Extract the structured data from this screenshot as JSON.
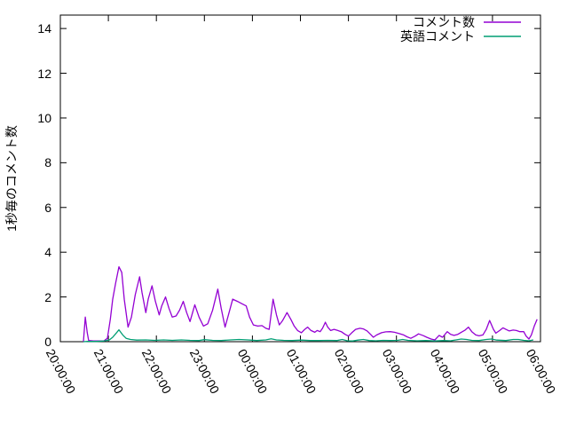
{
  "background_color": "#ffffff",
  "axis_color": "#000000",
  "chart_data": {
    "type": "line",
    "title": "",
    "xlabel": "",
    "ylabel": "1秒毎のコメント数",
    "grid": false,
    "legend_position": "top-right-inside",
    "y_ticks": [
      0,
      2,
      4,
      6,
      8,
      10,
      12,
      14
    ],
    "ylim": [
      0,
      14.6
    ],
    "x_tick_hours": [
      0,
      1,
      2,
      3,
      4,
      5,
      6,
      7,
      8,
      9,
      10
    ],
    "x_tick_labels": [
      "20:00:00",
      "21:00:00",
      "22:00:00",
      "23:00:00",
      "00:00:00",
      "01:00:00",
      "02:00:00",
      "03:00:00",
      "04:00:00",
      "05:00:00",
      "06:00:00"
    ],
    "x_axis_note": "time, hours measured from 20:00:00",
    "series": [
      {
        "id": "comment-count",
        "name": "コメント数",
        "color": "#9400D3",
        "points": [
          [
            0.48,
            0
          ],
          [
            0.52,
            1.1
          ],
          [
            0.56,
            0.4
          ],
          [
            0.59,
            0.05
          ],
          [
            0.69,
            0.03
          ],
          [
            0.8,
            0.03
          ],
          [
            0.91,
            0.04
          ],
          [
            0.98,
            0.15
          ],
          [
            1.04,
            1.0
          ],
          [
            1.09,
            1.9
          ],
          [
            1.15,
            2.6
          ],
          [
            1.22,
            3.35
          ],
          [
            1.28,
            3.1
          ],
          [
            1.33,
            1.9
          ],
          [
            1.41,
            0.65
          ],
          [
            1.48,
            1.1
          ],
          [
            1.56,
            2.1
          ],
          [
            1.65,
            2.9
          ],
          [
            1.7,
            2.2
          ],
          [
            1.78,
            1.3
          ],
          [
            1.83,
            1.9
          ],
          [
            1.91,
            2.5
          ],
          [
            1.98,
            1.8
          ],
          [
            2.06,
            1.2
          ],
          [
            2.11,
            1.6
          ],
          [
            2.19,
            2.0
          ],
          [
            2.26,
            1.5
          ],
          [
            2.33,
            1.1
          ],
          [
            2.41,
            1.15
          ],
          [
            2.48,
            1.4
          ],
          [
            2.56,
            1.8
          ],
          [
            2.63,
            1.3
          ],
          [
            2.7,
            0.9
          ],
          [
            2.8,
            1.65
          ],
          [
            2.89,
            1.1
          ],
          [
            2.98,
            0.7
          ],
          [
            3.07,
            0.8
          ],
          [
            3.17,
            1.4
          ],
          [
            3.28,
            2.35
          ],
          [
            3.35,
            1.5
          ],
          [
            3.43,
            0.65
          ],
          [
            3.5,
            1.2
          ],
          [
            3.59,
            1.9
          ],
          [
            3.69,
            1.8
          ],
          [
            3.78,
            1.7
          ],
          [
            3.87,
            1.6
          ],
          [
            3.94,
            1.1
          ],
          [
            4.02,
            0.75
          ],
          [
            4.11,
            0.7
          ],
          [
            4.2,
            0.72
          ],
          [
            4.28,
            0.6
          ],
          [
            4.35,
            0.55
          ],
          [
            4.43,
            1.9
          ],
          [
            4.5,
            1.2
          ],
          [
            4.56,
            0.75
          ],
          [
            4.63,
            0.95
          ],
          [
            4.72,
            1.3
          ],
          [
            4.8,
            1.0
          ],
          [
            4.87,
            0.7
          ],
          [
            4.94,
            0.5
          ],
          [
            5.02,
            0.4
          ],
          [
            5.09,
            0.55
          ],
          [
            5.15,
            0.65
          ],
          [
            5.22,
            0.5
          ],
          [
            5.3,
            0.42
          ],
          [
            5.35,
            0.5
          ],
          [
            5.41,
            0.45
          ],
          [
            5.46,
            0.6
          ],
          [
            5.52,
            0.87
          ],
          [
            5.57,
            0.65
          ],
          [
            5.63,
            0.5
          ],
          [
            5.7,
            0.55
          ],
          [
            5.78,
            0.5
          ],
          [
            5.85,
            0.45
          ],
          [
            5.93,
            0.33
          ],
          [
            6.0,
            0.25
          ],
          [
            6.07,
            0.4
          ],
          [
            6.15,
            0.55
          ],
          [
            6.24,
            0.6
          ],
          [
            6.31,
            0.57
          ],
          [
            6.39,
            0.48
          ],
          [
            6.46,
            0.33
          ],
          [
            6.52,
            0.2
          ],
          [
            6.59,
            0.3
          ],
          [
            6.69,
            0.4
          ],
          [
            6.78,
            0.44
          ],
          [
            6.87,
            0.45
          ],
          [
            6.96,
            0.42
          ],
          [
            7.06,
            0.36
          ],
          [
            7.15,
            0.3
          ],
          [
            7.22,
            0.22
          ],
          [
            7.3,
            0.15
          ],
          [
            7.39,
            0.25
          ],
          [
            7.46,
            0.35
          ],
          [
            7.56,
            0.27
          ],
          [
            7.63,
            0.2
          ],
          [
            7.72,
            0.12
          ],
          [
            7.8,
            0.08
          ],
          [
            7.89,
            0.28
          ],
          [
            7.96,
            0.2
          ],
          [
            8.06,
            0.45
          ],
          [
            8.13,
            0.33
          ],
          [
            8.2,
            0.28
          ],
          [
            8.28,
            0.33
          ],
          [
            8.35,
            0.42
          ],
          [
            8.43,
            0.52
          ],
          [
            8.5,
            0.65
          ],
          [
            8.57,
            0.45
          ],
          [
            8.65,
            0.3
          ],
          [
            8.72,
            0.26
          ],
          [
            8.8,
            0.3
          ],
          [
            8.87,
            0.55
          ],
          [
            8.94,
            0.95
          ],
          [
            9.02,
            0.55
          ],
          [
            9.07,
            0.38
          ],
          [
            9.15,
            0.5
          ],
          [
            9.22,
            0.62
          ],
          [
            9.28,
            0.55
          ],
          [
            9.35,
            0.48
          ],
          [
            9.43,
            0.52
          ],
          [
            9.5,
            0.5
          ],
          [
            9.57,
            0.45
          ],
          [
            9.65,
            0.45
          ],
          [
            9.7,
            0.25
          ],
          [
            9.76,
            0.12
          ],
          [
            9.81,
            0.3
          ],
          [
            9.87,
            0.7
          ],
          [
            9.93,
            1.0
          ]
        ]
      },
      {
        "id": "english-comments",
        "name": "英語コメント",
        "color": "#009E73",
        "points": [
          [
            0.48,
            0
          ],
          [
            0.57,
            0.01
          ],
          [
            0.76,
            0.01
          ],
          [
            0.91,
            0.03
          ],
          [
            1.02,
            0.08
          ],
          [
            1.09,
            0.2
          ],
          [
            1.17,
            0.4
          ],
          [
            1.22,
            0.53
          ],
          [
            1.3,
            0.3
          ],
          [
            1.37,
            0.15
          ],
          [
            1.46,
            0.1
          ],
          [
            1.59,
            0.07
          ],
          [
            1.78,
            0.08
          ],
          [
            1.96,
            0.06
          ],
          [
            2.15,
            0.08
          ],
          [
            2.33,
            0.06
          ],
          [
            2.52,
            0.08
          ],
          [
            2.7,
            0.06
          ],
          [
            2.89,
            0.05
          ],
          [
            3.0,
            0.09
          ],
          [
            3.17,
            0.06
          ],
          [
            3.35,
            0.05
          ],
          [
            3.54,
            0.08
          ],
          [
            3.72,
            0.1
          ],
          [
            3.91,
            0.08
          ],
          [
            4.09,
            0.05
          ],
          [
            4.28,
            0.08
          ],
          [
            4.39,
            0.13
          ],
          [
            4.5,
            0.08
          ],
          [
            4.65,
            0.06
          ],
          [
            4.83,
            0.05
          ],
          [
            5.02,
            0.07
          ],
          [
            5.2,
            0.05
          ],
          [
            5.39,
            0.05
          ],
          [
            5.57,
            0.06
          ],
          [
            5.76,
            0.05
          ],
          [
            5.87,
            0.1
          ],
          [
            5.98,
            0.04
          ],
          [
            6.09,
            0.03
          ],
          [
            6.2,
            0.07
          ],
          [
            6.31,
            0.1
          ],
          [
            6.43,
            0.05
          ],
          [
            6.57,
            0.04
          ],
          [
            6.72,
            0.06
          ],
          [
            6.87,
            0.05
          ],
          [
            7.02,
            0.06
          ],
          [
            7.13,
            0.1
          ],
          [
            7.24,
            0.06
          ],
          [
            7.43,
            0.04
          ],
          [
            7.61,
            0.05
          ],
          [
            7.8,
            0.03
          ],
          [
            7.98,
            0.05
          ],
          [
            8.13,
            0.04
          ],
          [
            8.24,
            0.08
          ],
          [
            8.35,
            0.12
          ],
          [
            8.46,
            0.1
          ],
          [
            8.57,
            0.06
          ],
          [
            8.72,
            0.05
          ],
          [
            8.87,
            0.1
          ],
          [
            8.98,
            0.12
          ],
          [
            9.09,
            0.07
          ],
          [
            9.28,
            0.05
          ],
          [
            9.43,
            0.1
          ],
          [
            9.54,
            0.1
          ],
          [
            9.65,
            0.06
          ],
          [
            9.76,
            0.04
          ],
          [
            9.85,
            0.08
          ]
        ]
      }
    ]
  }
}
